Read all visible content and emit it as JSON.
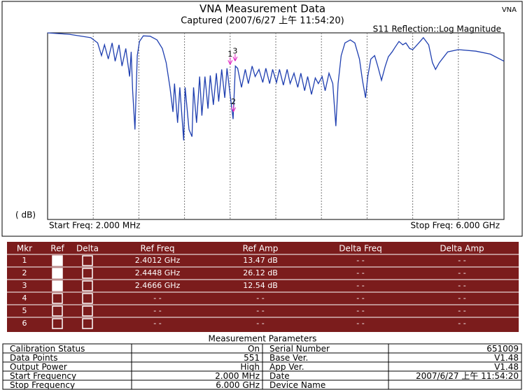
{
  "chart_data": {
    "type": "line",
    "title": "VNA Measurement Data",
    "subtitle": "Captured  (2007/6/27 上午 11:54:20)",
    "badge": "VNA",
    "trace_label": "S11 Reflection::Log Magnitude",
    "y_label": "( dB)",
    "start_label": "Start Freq: 2.000 MHz",
    "stop_label": "Stop Freq: 6.000 GHz",
    "xlim": [
      0.002,
      6
    ],
    "ylim": [
      55,
      5
    ],
    "grid": true,
    "x": [
      0.0,
      0.29,
      0.57,
      0.66,
      0.71,
      0.75,
      0.8,
      0.85,
      0.89,
      0.94,
      0.98,
      1.03,
      1.08,
      1.1,
      1.12,
      1.15,
      1.18,
      1.21,
      1.26,
      1.35,
      1.44,
      1.51,
      1.56,
      1.61,
      1.65,
      1.67,
      1.71,
      1.74,
      1.79,
      1.81,
      1.86,
      1.9,
      1.92,
      1.96,
      2.0,
      2.03,
      2.07,
      2.11,
      2.14,
      2.18,
      2.22,
      2.25,
      2.29,
      2.33,
      2.36,
      2.4,
      2.44,
      2.47,
      2.5,
      2.55,
      2.6,
      2.64,
      2.69,
      2.73,
      2.78,
      2.83,
      2.87,
      2.92,
      2.96,
      3.01,
      3.05,
      3.1,
      3.15,
      3.19,
      3.24,
      3.29,
      3.33,
      3.38,
      3.42,
      3.47,
      3.52,
      3.56,
      3.61,
      3.65,
      3.7,
      3.75,
      3.77,
      3.79,
      3.82,
      3.86,
      3.91,
      3.98,
      4.04,
      4.1,
      4.14,
      4.18,
      4.21,
      4.25,
      4.3,
      4.34,
      4.39,
      4.44,
      4.48,
      4.53,
      4.57,
      4.62,
      4.67,
      4.71,
      4.76,
      4.8,
      4.88,
      4.94,
      5.01,
      5.06,
      5.1,
      5.15,
      5.26,
      5.4,
      5.63,
      5.82,
      6.0
    ],
    "series": [
      {
        "color": "#1f3fb0",
        "values": [
          5.0,
          5.4,
          6.3,
          7.7,
          11.1,
          8.2,
          12.0,
          7.7,
          12.6,
          8.2,
          13.9,
          9.2,
          16.7,
          10.1,
          20.5,
          30.9,
          11.1,
          7.3,
          5.8,
          5.9,
          6.9,
          9.2,
          13.0,
          19.6,
          26.2,
          18.6,
          29.1,
          19.6,
          33.8,
          19.6,
          30.9,
          32.8,
          19.6,
          29.1,
          16.7,
          27.2,
          16.7,
          25.3,
          16.4,
          24.3,
          15.8,
          23.4,
          14.8,
          22.4,
          14.5,
          21.5,
          28.1,
          13.9,
          14.5,
          19.6,
          14.8,
          18.6,
          13.9,
          16.7,
          14.8,
          18.3,
          14.5,
          18.6,
          14.8,
          18.3,
          14.8,
          19.0,
          14.8,
          18.6,
          15.8,
          19.6,
          15.8,
          20.5,
          16.7,
          21.5,
          17.1,
          18.6,
          16.7,
          20.5,
          15.8,
          18.6,
          24.3,
          30.0,
          18.6,
          11.1,
          7.7,
          6.9,
          7.7,
          12.0,
          17.7,
          22.4,
          16.7,
          12.0,
          11.1,
          13.9,
          17.7,
          13.9,
          11.4,
          10.1,
          8.8,
          7.3,
          8.2,
          7.7,
          9.2,
          9.5,
          7.7,
          6.3,
          8.2,
          13.0,
          14.8,
          13.0,
          10.1,
          9.5,
          9.9,
          10.7,
          12.6
        ]
      }
    ],
    "marker_color": "#e020c0",
    "markers": [
      {
        "label": "1",
        "x": 2.4012,
        "y": 13.47
      },
      {
        "label": "2",
        "x": 2.4448,
        "y": 26.12
      },
      {
        "label": "3",
        "x": 2.4666,
        "y": 12.54
      }
    ]
  },
  "marker_table": {
    "header": [
      "Mkr",
      "Ref",
      "Delta",
      "Ref Freq",
      "Ref Amp",
      "Delta Freq",
      "Delta Amp"
    ],
    "rows": [
      [
        "1",
        "2.4012 GHz",
        "13.47 dB",
        "- -",
        "- -"
      ],
      [
        "2",
        "2.4448 GHz",
        "26.12 dB",
        "- -",
        "- -"
      ],
      [
        "3",
        "2.4666 GHz",
        "12.54 dB",
        "- -",
        "- -"
      ],
      [
        "4",
        "- -",
        "- -",
        "- -",
        "- -"
      ],
      [
        "5",
        "- -",
        "- -",
        "- -",
        "- -"
      ],
      [
        "6",
        "- -",
        "- -",
        "- -",
        "- -"
      ]
    ]
  },
  "parameters": {
    "title": "Measurement Parameters",
    "rows": [
      [
        "Calibration Status",
        "On",
        "Serial Number",
        "651009"
      ],
      [
        "Data Points",
        "551",
        "Base Ver.",
        "V1.48"
      ],
      [
        "Output Power",
        "High",
        "App Ver.",
        "V1.48"
      ],
      [
        "Start Frequency",
        "2.000 MHz",
        "Date",
        "2007/6/27 上午 11:54:20"
      ],
      [
        "Stop Frequency",
        "6.000 GHz",
        "Device Name",
        ""
      ]
    ]
  }
}
